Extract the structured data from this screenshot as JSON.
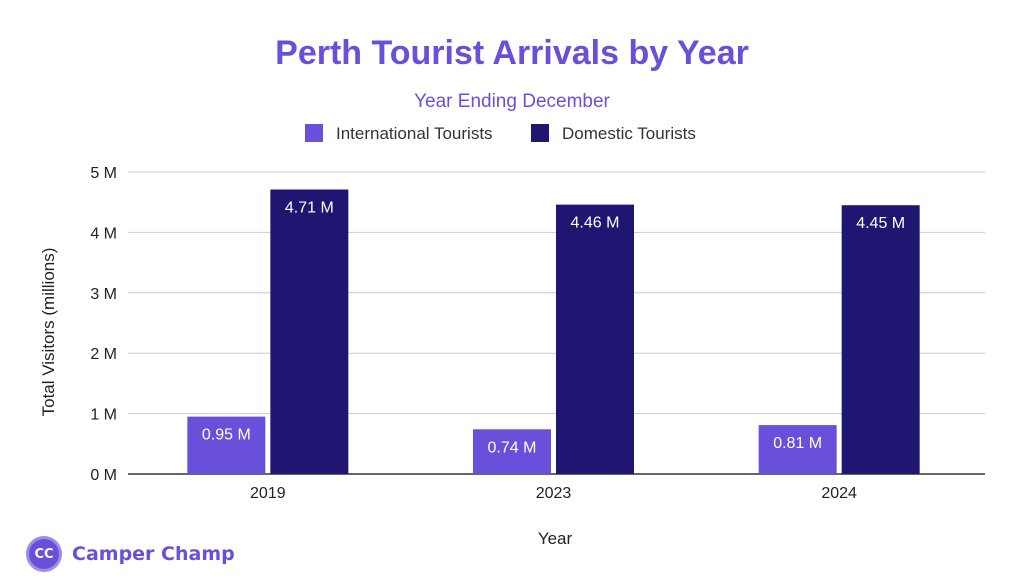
{
  "chart_data": {
    "type": "bar",
    "title": "Perth Tourist Arrivals by Year",
    "subtitle": "Year Ending December",
    "xlabel": "Year",
    "ylabel": "Total Visitors (millions)",
    "categories": [
      "2019",
      "2023",
      "2024"
    ],
    "series": [
      {
        "name": "International Tourists",
        "color": "#6a4fdb",
        "values": [
          0.95,
          0.74,
          0.81
        ],
        "labels": [
          "0.95 M",
          "0.74 M",
          "0.81 M"
        ]
      },
      {
        "name": "Domestic Tourists",
        "color": "#1f1672",
        "values": [
          4.71,
          4.46,
          4.45
        ],
        "labels": [
          "4.71 M",
          "4.46 M",
          "4.45 M"
        ]
      }
    ],
    "ylim": [
      0,
      5
    ],
    "yticks": [
      0,
      1,
      2,
      3,
      4,
      5
    ],
    "ytick_labels": [
      "0 M",
      "1 M",
      "2 M",
      "3 M",
      "4 M",
      "5 M"
    ],
    "grid": true,
    "legend_position": "top-center",
    "title_color": "#6a4fdb"
  },
  "brand": {
    "logo_text": "CC",
    "name": "Camper Champ",
    "color": "#6a4fdb"
  }
}
